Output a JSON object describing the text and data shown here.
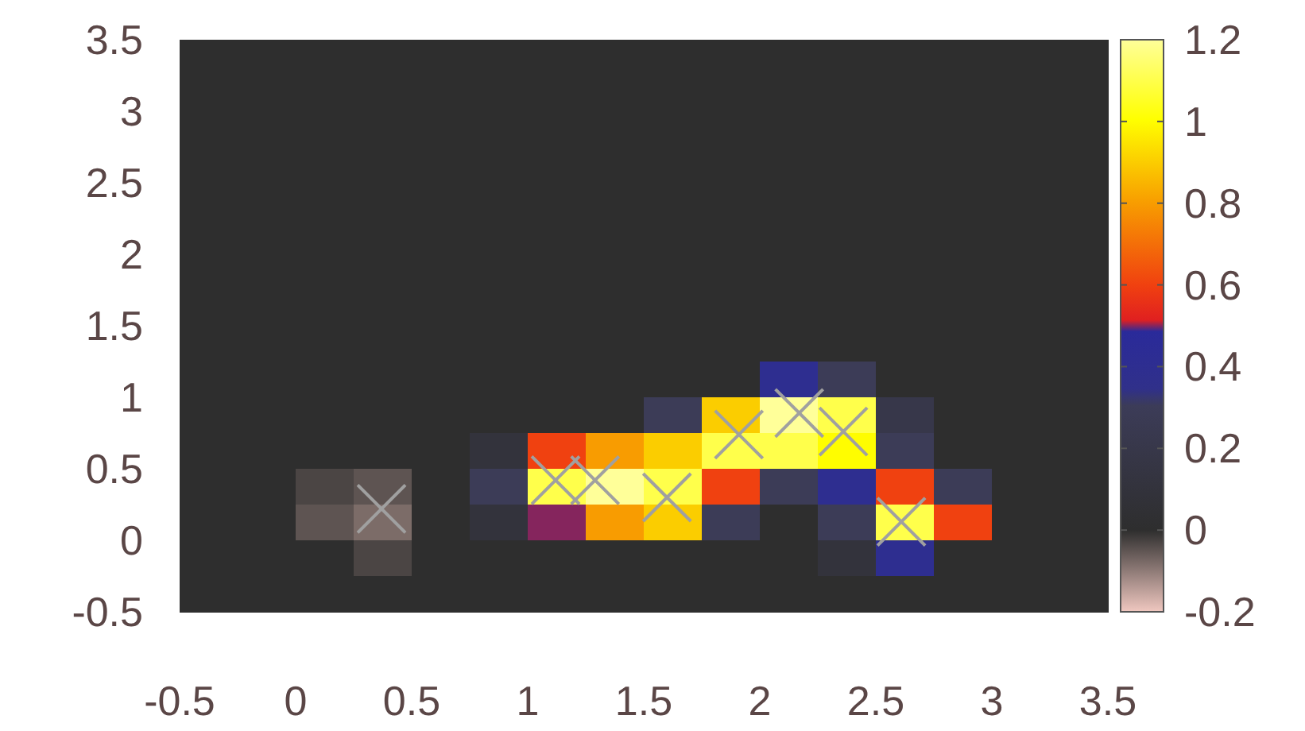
{
  "chart_data": [
    {
      "type": "heatmap",
      "categories": [
        null,
        null,
        null,
        null,
        null,
        null,
        null,
        null,
        null,
        null,
        null,
        null,
        null,
        null,
        null,
        null
      ],
      "y_categories": [
        null,
        null,
        null,
        null,
        null,
        null,
        null,
        null,
        null,
        null,
        null,
        null,
        null,
        null,
        null,
        null
      ],
      "cells": [
        [
          0,
          0,
          0,
          0,
          0,
          0,
          0,
          0,
          0,
          0,
          0,
          0,
          0,
          0,
          0,
          0
        ],
        [
          0,
          0,
          0,
          0,
          0,
          0,
          0,
          0,
          0,
          0,
          0,
          0,
          0,
          0,
          0,
          0
        ],
        [
          0,
          0,
          0,
          0,
          0,
          0,
          0,
          0,
          0,
          0,
          0,
          0,
          0,
          0,
          0,
          0
        ],
        [
          0,
          0,
          0,
          0,
          0,
          0,
          0,
          0,
          0,
          0,
          0,
          0,
          0,
          0,
          0,
          0
        ],
        [
          0,
          0,
          0,
          0,
          0,
          0,
          0,
          0,
          0,
          0,
          0,
          0,
          0,
          0,
          0,
          0
        ],
        [
          0,
          0,
          0,
          0,
          0,
          0,
          0,
          0,
          0,
          0,
          0,
          0,
          0,
          0,
          0,
          0
        ],
        [
          0,
          0,
          0,
          0,
          0,
          0,
          0,
          0,
          0,
          0,
          0,
          0,
          0,
          0,
          0,
          0
        ],
        [
          0,
          0,
          0,
          0,
          0,
          0,
          0,
          0,
          0,
          0,
          0,
          0,
          0,
          0,
          0,
          0
        ],
        [
          0,
          0,
          0,
          0,
          0,
          0,
          0,
          0,
          0,
          0,
          0,
          0,
          0,
          0,
          0,
          0
        ],
        [
          0,
          0,
          0,
          0,
          0,
          0,
          0,
          0,
          0,
          0,
          0.4,
          0.3,
          0,
          0,
          0,
          0
        ],
        [
          0,
          0,
          0,
          0,
          0,
          0,
          0,
          0,
          0.3,
          0.9,
          1.2,
          1.1,
          0.2,
          0,
          0,
          0
        ],
        [
          0,
          0,
          0,
          0,
          0,
          0.1,
          0.6,
          0.8,
          0.9,
          1.1,
          1.1,
          1,
          0.3,
          0,
          0,
          0
        ],
        [
          0,
          0,
          -0.03,
          -0.05,
          0,
          0.3,
          1.1,
          1.2,
          1.1,
          0.6,
          0.3,
          0.4,
          0.6,
          0.3,
          0,
          0
        ],
        [
          0,
          0,
          -0.05,
          -0.08,
          0,
          0.1,
          0.5,
          0.8,
          0.9,
          0.3,
          0,
          0.3,
          1.1,
          0.6,
          0,
          0
        ],
        [
          0,
          0,
          0,
          -0.03,
          0,
          0,
          0,
          0,
          0,
          0,
          0,
          0.1,
          0.4,
          0,
          0,
          0
        ],
        [
          0,
          0,
          0,
          0,
          0,
          0,
          0,
          0,
          0,
          0,
          0,
          0,
          0,
          0,
          0,
          0
        ]
      ],
      "clim": [
        -0.2,
        1.2
      ],
      "cticks": [
        -0.2,
        0,
        0.2,
        0.4,
        0.6,
        0.8,
        1,
        1.2
      ]
    },
    {
      "type": "scatter",
      "x": [
        0.37,
        1.12,
        1.29,
        1.6,
        1.91,
        2.17,
        2.36,
        2.61
      ],
      "values": [
        0.22,
        0.42,
        0.42,
        0.3,
        0.74,
        0.89,
        0.76,
        0.13
      ],
      "color": "#a0a0a0",
      "marker": "cross",
      "xlim": [
        -0.5,
        3.5
      ],
      "xticks": [
        -0.5,
        0,
        0.5,
        1,
        1.5,
        2,
        2.5,
        3,
        3.5
      ],
      "ylim": [
        -0.5,
        3.5
      ],
      "yticks": [
        -0.5,
        0,
        0.5,
        1,
        1.5,
        2,
        2.5,
        3,
        3.5
      ]
    }
  ]
}
